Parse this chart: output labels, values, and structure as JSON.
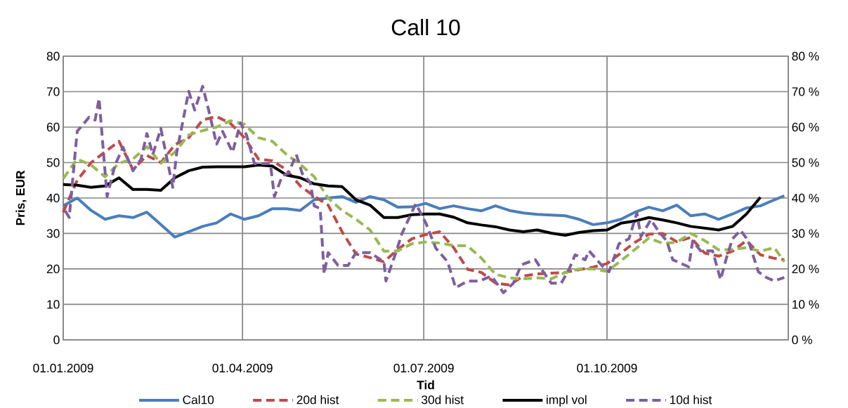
{
  "chart_data": {
    "type": "line",
    "title": "Call 10",
    "xlabel": "Tid",
    "ylabel": "Pris, EUR",
    "x": [
      "2009-01-01",
      "2009-01-08",
      "2009-01-15",
      "2009-01-22",
      "2009-01-29",
      "2009-02-05",
      "2009-02-12",
      "2009-02-19",
      "2009-02-26",
      "2009-03-05",
      "2009-03-12",
      "2009-03-19",
      "2009-03-26",
      "2009-04-02",
      "2009-04-09",
      "2009-04-16",
      "2009-04-23",
      "2009-04-30",
      "2009-05-07",
      "2009-05-14",
      "2009-05-21",
      "2009-05-28",
      "2009-06-04",
      "2009-06-11",
      "2009-06-18",
      "2009-06-25",
      "2009-07-02",
      "2009-07-09",
      "2009-07-16",
      "2009-07-23",
      "2009-07-30",
      "2009-08-06",
      "2009-08-13",
      "2009-08-20",
      "2009-08-27",
      "2009-09-03",
      "2009-09-10",
      "2009-09-17",
      "2009-09-24",
      "2009-10-01",
      "2009-10-08",
      "2009-10-15",
      "2009-10-22",
      "2009-10-29",
      "2009-11-05",
      "2009-11-12",
      "2009-11-19",
      "2009-11-26",
      "2009-12-03",
      "2009-12-10",
      "2009-12-17",
      "2009-12-24",
      "2009-12-29"
    ],
    "xlim": [
      "2009-01-01",
      "2009-12-31"
    ],
    "xticks": [
      {
        "value": "2009-01-01",
        "label": "01.01.2009"
      },
      {
        "value": "2009-04-01",
        "label": "01.04.2009"
      },
      {
        "value": "2009-07-01",
        "label": "01.07.2009"
      },
      {
        "value": "2009-10-01",
        "label": "01.10.2009"
      }
    ],
    "ylim": [
      0,
      80
    ],
    "yticks": [
      0,
      10,
      20,
      30,
      40,
      50,
      60,
      70,
      80
    ],
    "y2lim": [
      0,
      80
    ],
    "y2ticks": [
      {
        "value": 0,
        "label": "0 %"
      },
      {
        "value": 10,
        "label": "10 %"
      },
      {
        "value": 20,
        "label": "20 %"
      },
      {
        "value": 30,
        "label": "30 %"
      },
      {
        "value": 40,
        "label": "40 %"
      },
      {
        "value": 50,
        "label": "50 %"
      },
      {
        "value": 60,
        "label": "60 %"
      },
      {
        "value": 70,
        "label": "70 %"
      },
      {
        "value": 80,
        "label": "80 %"
      }
    ],
    "grid": true,
    "legend": "bottom",
    "marker": "none",
    "series": [
      {
        "name": "Cal10",
        "color": "#4a7ebb",
        "line_style": "solid",
        "values": [
          37.8,
          40,
          36.5,
          34,
          35,
          34.5,
          36,
          32.5,
          29,
          30.5,
          32,
          33,
          35.5,
          34,
          35,
          37,
          37,
          36.5,
          39.5,
          40,
          40.4,
          38.8,
          40.4,
          39.5,
          37.4,
          37.5,
          38.5,
          37,
          37.8,
          37,
          36.4,
          37.8,
          36.5,
          35.8,
          35.4,
          35.2,
          35,
          34,
          32.5,
          33,
          34,
          36,
          37.4,
          36.4,
          38,
          35,
          35.5,
          34,
          35.5,
          37.2,
          37.8,
          39.5,
          40.6
        ]
      },
      {
        "name": "20d hist",
        "color": "#be4b48",
        "line_style": "dashed",
        "axis": "y2",
        "values": [
          36,
          45,
          50,
          53,
          56,
          48,
          52,
          50,
          55,
          57,
          62,
          63,
          61,
          57,
          51,
          50.5,
          48,
          43.4,
          40.5,
          38,
          30.5,
          24.2,
          23.2,
          22,
          25.5,
          28.5,
          29.7,
          30.5,
          26,
          19.9,
          19,
          16,
          15.5,
          18,
          18.6,
          18.8,
          19,
          19.8,
          20.5,
          21.5,
          24.5,
          27.5,
          29.8,
          30,
          27.7,
          28.9,
          24.5,
          23.6,
          25,
          28,
          24,
          23,
          22.6
        ]
      },
      {
        "name": "30d hist",
        "color": "#98b954",
        "line_style": "dashed",
        "axis": "y2",
        "values": [
          45.5,
          51,
          49.3,
          46,
          49.8,
          51,
          54.5,
          49.8,
          52.9,
          57.8,
          59,
          60,
          61.8,
          60.8,
          57,
          56,
          52.3,
          49.5,
          46,
          40,
          36.5,
          34,
          31,
          25,
          25.1,
          27.1,
          27.6,
          27.3,
          26.6,
          26.5,
          23,
          18.5,
          17.5,
          17.2,
          17.5,
          17.2,
          19,
          20,
          20,
          19.3,
          22.3,
          25.5,
          28.7,
          27.2,
          27.5,
          30,
          28,
          25.4,
          25.5,
          26,
          25,
          26,
          22
        ]
      },
      {
        "name": "impl vol",
        "color": "#000000",
        "line_style": "solid",
        "axis": "y2",
        "values": [
          43.8,
          43.6,
          43,
          43.4,
          45.7,
          42.4,
          42.4,
          42.2,
          45.7,
          47.7,
          48.7,
          48.8,
          48.8,
          48.8,
          49.3,
          49,
          46.5,
          45.7,
          44,
          43.4,
          43.2,
          39.5,
          38,
          34.5,
          34.5,
          35.3,
          35.5,
          35.5,
          34.6,
          33,
          32.4,
          31.9,
          31,
          30.5,
          31,
          30.1,
          29.5,
          30.3,
          30.8,
          31,
          32.9,
          33.5,
          34.5,
          33.8,
          33,
          32,
          31.5,
          31,
          32,
          35.5,
          40.2,
          null,
          null
        ]
      },
      {
        "name": "10d hist",
        "color": "#7d5fa0",
        "line_style": "dashed",
        "axis": "y2",
        "x": [
          "2009-01-02",
          "2009-01-04",
          "2009-01-08",
          "2009-01-14",
          "2009-01-17",
          "2009-01-19",
          "2009-01-23",
          "2009-01-27",
          "2009-01-31",
          "2009-02-05",
          "2009-02-09",
          "2009-02-12",
          "2009-02-15",
          "2009-02-19",
          "2009-02-25",
          "2009-02-27",
          "2009-03-05",
          "2009-03-08",
          "2009-03-12",
          "2009-03-15",
          "2009-03-19",
          "2009-03-22",
          "2009-03-27",
          "2009-03-31",
          "2009-04-03",
          "2009-04-07",
          "2009-04-15",
          "2009-04-17",
          "2009-04-21",
          "2009-04-24",
          "2009-04-28",
          "2009-05-01",
          "2009-05-05",
          "2009-05-07",
          "2009-05-10",
          "2009-05-12",
          "2009-05-14",
          "2009-05-19",
          "2009-05-24",
          "2009-05-28",
          "2009-06-04",
          "2009-06-11",
          "2009-06-12",
          "2009-06-17",
          "2009-06-20",
          "2009-06-27",
          "2009-07-02",
          "2009-07-07",
          "2009-07-13",
          "2009-07-17",
          "2009-07-23",
          "2009-07-29",
          "2009-08-04",
          "2009-08-10",
          "2009-08-15",
          "2009-08-19",
          "2009-08-26",
          "2009-08-29",
          "2009-09-03",
          "2009-09-08",
          "2009-09-12",
          "2009-09-15",
          "2009-09-20",
          "2009-09-22",
          "2009-09-29",
          "2009-10-02",
          "2009-10-07",
          "2009-10-12",
          "2009-10-16",
          "2009-10-18",
          "2009-10-23",
          "2009-10-27",
          "2009-10-31",
          "2009-11-03",
          "2009-11-11",
          "2009-11-13",
          "2009-11-17",
          "2009-11-23",
          "2009-11-27",
          "2009-11-30",
          "2009-12-03",
          "2009-12-07",
          "2009-12-11",
          "2009-12-16",
          "2009-12-20",
          "2009-12-24",
          "2009-12-29"
        ],
        "values": [
          36.4,
          34.5,
          58.8,
          62.8,
          62,
          68.1,
          40.4,
          49.3,
          54.3,
          47.7,
          50.9,
          58.2,
          52.3,
          59.6,
          43,
          52.9,
          70.1,
          64.8,
          71.5,
          64.8,
          55.2,
          58.8,
          52.9,
          61.2,
          57.8,
          49.7,
          49.7,
          40.4,
          46.3,
          46.9,
          52.3,
          46.9,
          44.4,
          37.8,
          37,
          18.6,
          24.6,
          21,
          21,
          24.6,
          24.6,
          22,
          16.6,
          24.6,
          29.9,
          38.4,
          33,
          25.9,
          22,
          14.7,
          16.6,
          16.6,
          18,
          13.3,
          16,
          21.2,
          22.6,
          20,
          16,
          16,
          20,
          24,
          22.6,
          25.1,
          20.6,
          19.2,
          27.1,
          28.5,
          35.8,
          29.1,
          33.9,
          30.5,
          27.9,
          22.6,
          20.6,
          27.9,
          25.1,
          25.1,
          17,
          23.2,
          28.5,
          30.9,
          27.9,
          19.2,
          17.6,
          16.6,
          17.6
        ]
      }
    ]
  }
}
